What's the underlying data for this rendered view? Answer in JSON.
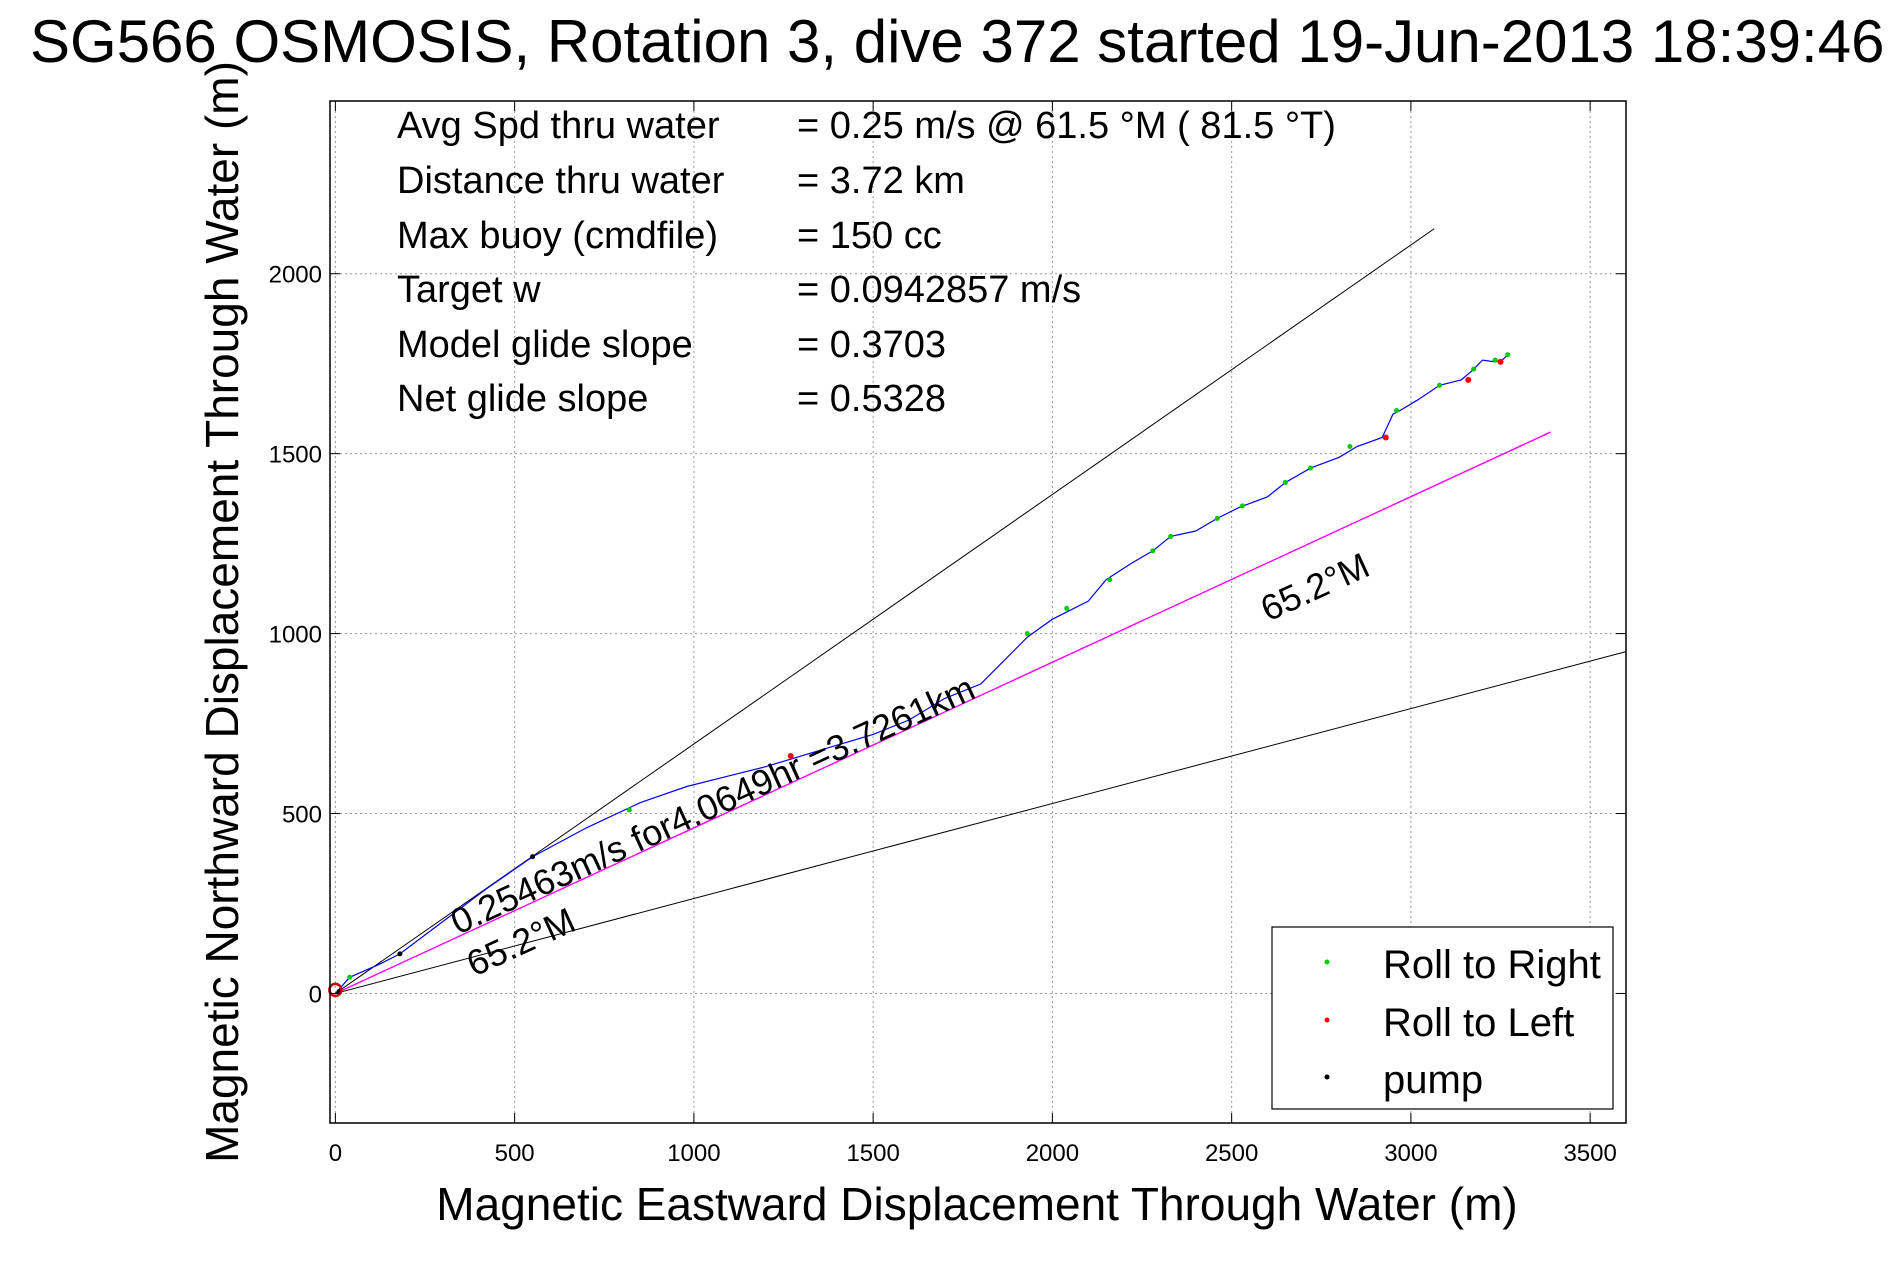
{
  "chart_data": {
    "type": "scatter",
    "title": "SG566 OSMOSIS, Rotation 3, dive 372 started 19-Jun-2013 18:39:46",
    "xlabel": "Magnetic Eastward Displacement Through Water (m)",
    "ylabel": "Magnetic Northward Displacement Through Water (m)",
    "xlim": [
      -15,
      3600
    ],
    "ylim": [
      -360,
      2480
    ],
    "xticks": [
      0,
      500,
      1000,
      1500,
      2000,
      2500,
      3000,
      3500
    ],
    "yticks": [
      0,
      500,
      1000,
      1500,
      2000
    ],
    "grid": true,
    "legend_position": "bottom-right",
    "colors": {
      "track": "#0000ff",
      "target_line": "#ff00ff",
      "roll_right": "#00cc00",
      "roll_left": "#ff0000",
      "pump": "#000000",
      "start_marker": "#cc0000",
      "reference_lines": "#000000"
    },
    "stats": [
      {
        "label": "Avg Spd thru water",
        "value": "=  0.25 m/s @  61.5 °M ( 81.5 °T)"
      },
      {
        "label": "Distance thru water",
        "value": "=  3.72 km"
      },
      {
        "label": "Max buoy (cmdfile)",
        "value": "= 150 cc"
      },
      {
        "label": "Target w",
        "value": "= 0.0942857 m/s"
      },
      {
        "label": "Model glide slope",
        "value": "= 0.3703"
      },
      {
        "label": "Net glide slope",
        "value": "= 0.5328"
      }
    ],
    "annotations": {
      "speed_line": "0.25463m/s for4.0649hr =3.7261km",
      "heading_lower": "65.2°M",
      "heading_upper": "65.2°M"
    },
    "legend": [
      {
        "label": "Roll to Right",
        "color": "#00cc00"
      },
      {
        "label": "Roll to Left",
        "color": "#ff0000"
      },
      {
        "label": "pump",
        "color": "#000000"
      }
    ],
    "reference_lines": [
      {
        "from": [
          0,
          0
        ],
        "to": [
          3065,
          2125
        ]
      },
      {
        "from": [
          0,
          0
        ],
        "to": [
          3600,
          950
        ]
      },
      {
        "from": [
          0,
          0
        ],
        "to": [
          3390,
          1560
        ],
        "style": "target"
      }
    ],
    "track": {
      "x": [
        0,
        40,
        120,
        180,
        300,
        420,
        550,
        700,
        850,
        980,
        1100,
        1200,
        1300,
        1400,
        1500,
        1600,
        1700,
        1800,
        1860,
        1930,
        2000,
        2100,
        2150,
        2220,
        2280,
        2330,
        2400,
        2460,
        2520,
        2600,
        2650,
        2720,
        2800,
        2850,
        2920,
        2950,
        2970,
        3020,
        3080,
        3140,
        3170,
        3200,
        3235,
        3255,
        3270
      ],
      "y": [
        0,
        45,
        80,
        110,
        200,
        290,
        380,
        460,
        530,
        575,
        605,
        630,
        660,
        690,
        720,
        760,
        820,
        860,
        920,
        990,
        1040,
        1090,
        1150,
        1195,
        1230,
        1270,
        1285,
        1320,
        1350,
        1380,
        1420,
        1460,
        1490,
        1520,
        1545,
        1610,
        1620,
        1650,
        1690,
        1705,
        1730,
        1760,
        1755,
        1760,
        1775
      ]
    },
    "roll_right": {
      "x": [
        40,
        820,
        1930,
        2040,
        2160,
        2280,
        2330,
        2460,
        2530,
        2650,
        2720,
        2830,
        2960,
        3080,
        3175,
        3235,
        3270
      ],
      "y": [
        45,
        510,
        1000,
        1070,
        1150,
        1230,
        1270,
        1320,
        1355,
        1420,
        1460,
        1520,
        1620,
        1690,
        1735,
        1760,
        1775
      ]
    },
    "roll_left": {
      "x": [
        1270,
        2930,
        3160,
        3250
      ],
      "y": [
        660,
        1545,
        1705,
        1755
      ]
    },
    "pump": {
      "x": [
        10,
        180,
        550
      ],
      "y": [
        5,
        110,
        380
      ]
    },
    "start_marker": {
      "x": [
        0
      ],
      "y": [
        10
      ]
    }
  }
}
